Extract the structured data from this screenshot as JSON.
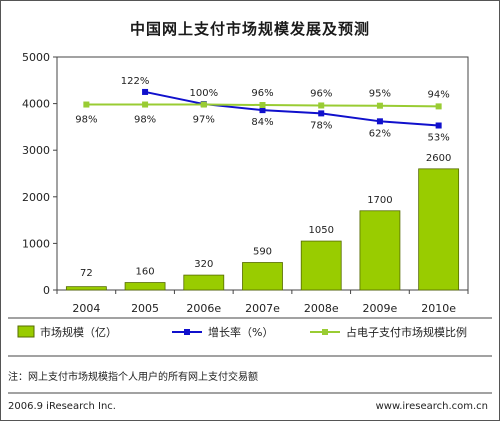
{
  "title": "中国网上支付市场规模发展及预测",
  "note": "注：网上支付市场规模指个人用户的所有网上支付交易额",
  "footer": {
    "left": "2006.9 iResearch Inc.",
    "right": "www.iresearch.com.cn"
  },
  "colors": {
    "bar": "#99cc00",
    "growth": "#1010cc",
    "ratio": "#99cc33"
  },
  "chart_data": {
    "type": "bar",
    "title": "中国网上支付市场规模发展及预测",
    "categories": [
      "2004",
      "2005",
      "2006e",
      "2007e",
      "2008e",
      "2009e",
      "2010e"
    ],
    "ylim": [
      0,
      5000
    ],
    "yticks": [
      "0",
      "1000",
      "2000",
      "3000",
      "4000",
      "5000"
    ],
    "grid": false,
    "legend_position": "bottom",
    "bar_series": {
      "name": "市场规模（亿）",
      "values": [
        72,
        160,
        320,
        590,
        1050,
        1700,
        2600
      ],
      "labels": [
        "72",
        "160",
        "320",
        "590",
        "1050",
        "1700",
        "2600"
      ]
    },
    "line_series": [
      {
        "name": "增长率（%）",
        "start_index": 1,
        "labels": [
          "122%",
          "100%",
          "84%",
          "78%",
          "62%",
          "53%"
        ],
        "positions": [
          4250,
          3990,
          3860,
          3790,
          3620,
          3530
        ]
      },
      {
        "name": "占电子支付市场规模比例",
        "start_index": 0,
        "labels": [
          "98%",
          "98%",
          "97%",
          "96%",
          "96%",
          "95%",
          "94%"
        ],
        "positions": [
          3980,
          3980,
          3980,
          3970,
          3960,
          3955,
          3940
        ]
      }
    ]
  }
}
